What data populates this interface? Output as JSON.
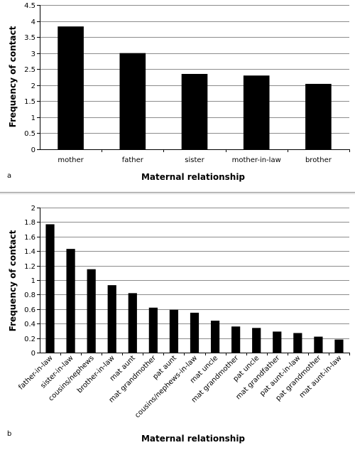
{
  "chart_data": [
    {
      "type": "bar",
      "panel_label": "a",
      "categories": [
        "mother",
        "father",
        "sister",
        "mother-in-law",
        "brother"
      ],
      "values": [
        3.83,
        3.0,
        2.35,
        2.3,
        2.04
      ],
      "xlabel": "Maternal relationship",
      "ylabel": "Frequency of contact",
      "ylim": [
        0,
        4.5
      ],
      "yticks": [
        "0",
        "0.5",
        "1",
        "1.5",
        "2",
        "2.5",
        "3",
        "3.5",
        "4",
        "4.5"
      ],
      "grid": true,
      "bar_color": "#000000"
    },
    {
      "type": "bar",
      "panel_label": "b",
      "categories": [
        "father-in-law",
        "sister-in-law",
        "cousins/nephews",
        "brother-in-law",
        "mat aunt",
        "mat grandmother",
        "pat aunt",
        "cousins/nephews-in-law",
        "mat uncle",
        "mat grandmother",
        "pat uncle",
        "mat grandfather",
        "pat aunt-in-law",
        "pat grandmother",
        "mat aunt-in-law"
      ],
      "values": [
        1.77,
        1.43,
        1.15,
        0.93,
        0.82,
        0.62,
        0.59,
        0.55,
        0.44,
        0.36,
        0.34,
        0.29,
        0.27,
        0.22,
        0.18
      ],
      "xlabel": "Maternal relationship",
      "ylabel": "Frequency of contact",
      "ylim": [
        0,
        2
      ],
      "yticks": [
        "0",
        "0.2",
        "0.4",
        "0.6",
        "0.8",
        "1",
        "1.2",
        "1.4",
        "1.6",
        "1.8",
        "2"
      ],
      "grid": true,
      "bar_color": "#000000"
    }
  ]
}
